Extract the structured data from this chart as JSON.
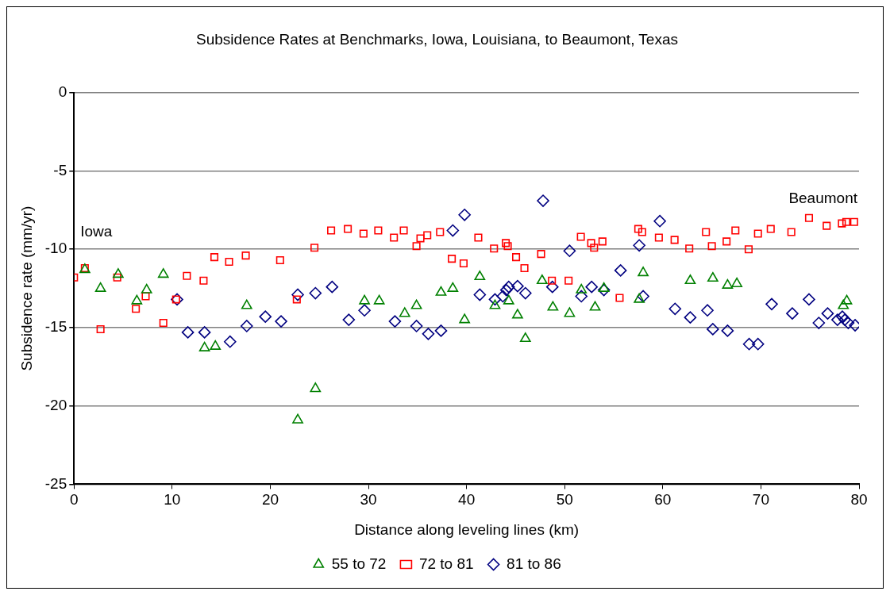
{
  "chart_data": {
    "type": "scatter",
    "title": "Subsidence Rates at Benchmarks, Iowa, Louisiana, to Beaumont, Texas",
    "xlabel": "Distance along leveling lines (km)",
    "ylabel": "Subsidence rate (mm/yr)",
    "xlim": [
      0,
      80
    ],
    "xticks": [
      0,
      10,
      20,
      30,
      40,
      50,
      60,
      70,
      80
    ],
    "ylim": [
      -25,
      0
    ],
    "yticks": [
      -25,
      -20,
      -15,
      -10,
      -5,
      0
    ],
    "grid": "y",
    "legend": "bottom",
    "annotations": [
      "Iowa",
      "Beaumont"
    ],
    "series": [
      {
        "name": "55 to 72",
        "color": "#008000",
        "marker": "triangle",
        "x": [
          1.1,
          2.7,
          4.5,
          6.4,
          7.4,
          9.1,
          13.3,
          14.4,
          17.6,
          22.8,
          24.6,
          29.6,
          31.1,
          33.7,
          34.9,
          37.4,
          38.6,
          39.8,
          41.35,
          42.9,
          44.3,
          45.2,
          46.0,
          47.7,
          48.8,
          50.5,
          51.7,
          53.1,
          54.0,
          57.6,
          58.0,
          62.8,
          65.1,
          66.6,
          67.55,
          78.4,
          78.75
        ],
        "values": [
          -11.3,
          -12.5,
          -11.6,
          -13.3,
          -12.6,
          -11.6,
          -16.3,
          -16.2,
          -13.6,
          -20.9,
          -18.9,
          -13.3,
          -13.3,
          -14.1,
          -13.6,
          -12.75,
          -12.5,
          -14.5,
          -11.75,
          -13.6,
          -13.3,
          -14.2,
          -15.7,
          -12.0,
          -13.7,
          -14.1,
          -12.6,
          -13.7,
          -12.5,
          -13.2,
          -11.5,
          -12.0,
          -11.85,
          -12.3,
          -12.2,
          -13.6,
          -13.3
        ]
      },
      {
        "name": "72 to 81",
        "color": "#ff0000",
        "marker": "square",
        "x": [
          0,
          1.1,
          2.7,
          4.4,
          6.3,
          7.3,
          9.1,
          10.4,
          11.5,
          13.2,
          14.3,
          15.8,
          17.5,
          21.0,
          22.7,
          24.5,
          26.2,
          27.9,
          29.5,
          31.0,
          32.6,
          33.6,
          34.9,
          35.3,
          36.0,
          37.3,
          38.5,
          39.7,
          41.2,
          42.8,
          44.0,
          44.2,
          45.05,
          45.9,
          47.6,
          48.7,
          50.4,
          51.65,
          52.7,
          53.0,
          53.85,
          55.6,
          57.5,
          57.9,
          59.6,
          61.2,
          62.7,
          64.4,
          65.0,
          66.5,
          67.4,
          68.75,
          69.7,
          71.0,
          73.1,
          74.9,
          76.7,
          78.25,
          78.7,
          79.5
        ],
        "values": [
          -11.8,
          -11.2,
          -15.1,
          -11.8,
          -13.8,
          -13.0,
          -14.7,
          -13.2,
          -11.7,
          -12.0,
          -10.5,
          -10.8,
          -10.4,
          -10.7,
          -13.2,
          -9.9,
          -8.8,
          -8.7,
          -9.0,
          -8.8,
          -9.25,
          -8.8,
          -9.8,
          -9.3,
          -9.1,
          -8.9,
          -10.6,
          -10.9,
          -9.25,
          -9.95,
          -9.6,
          -9.8,
          -10.5,
          -11.2,
          -10.3,
          -12.0,
          -12.0,
          -9.2,
          -9.6,
          -9.9,
          -9.5,
          -13.1,
          -8.7,
          -8.9,
          -9.25,
          -9.4,
          -9.95,
          -8.9,
          -9.8,
          -9.5,
          -8.8,
          -10.0,
          -9.0,
          -8.7,
          -8.9,
          -8.0,
          -8.5,
          -8.35,
          -8.25,
          -8.25
        ]
      },
      {
        "name": "81 to 86",
        "color": "#000080",
        "marker": "diamond",
        "x": [
          10.5,
          11.6,
          13.3,
          15.9,
          17.6,
          19.5,
          21.1,
          22.8,
          24.6,
          26.3,
          28.0,
          29.6,
          32.7,
          34.9,
          36.1,
          37.4,
          38.6,
          39.8,
          41.35,
          42.9,
          43.7,
          44.05,
          44.3,
          45.2,
          46.0,
          47.8,
          48.75,
          50.5,
          51.7,
          52.75,
          54.0,
          55.7,
          57.6,
          58.0,
          59.7,
          61.25,
          62.8,
          64.55,
          65.1,
          66.6,
          68.8,
          69.7,
          71.1,
          73.2,
          74.9,
          75.9,
          76.8,
          77.8,
          78.3,
          78.55,
          78.9,
          79.6
        ],
        "values": [
          -13.2,
          -15.3,
          -15.3,
          -15.9,
          -14.9,
          -14.3,
          -14.6,
          -12.9,
          -12.8,
          -12.4,
          -14.5,
          -13.9,
          -14.6,
          -14.9,
          -15.4,
          -15.2,
          -8.8,
          -7.8,
          -12.9,
          -13.2,
          -13.0,
          -12.6,
          -12.4,
          -12.35,
          -12.8,
          -6.9,
          -12.4,
          -10.1,
          -13.0,
          -12.4,
          -12.6,
          -11.35,
          -9.75,
          -13.0,
          -8.2,
          -13.8,
          -14.35,
          -13.9,
          -15.1,
          -15.2,
          -16.05,
          -16.05,
          -13.5,
          -14.1,
          -13.2,
          -14.7,
          -14.1,
          -14.5,
          -14.3,
          -14.5,
          -14.7,
          -14.85
        ]
      }
    ]
  }
}
